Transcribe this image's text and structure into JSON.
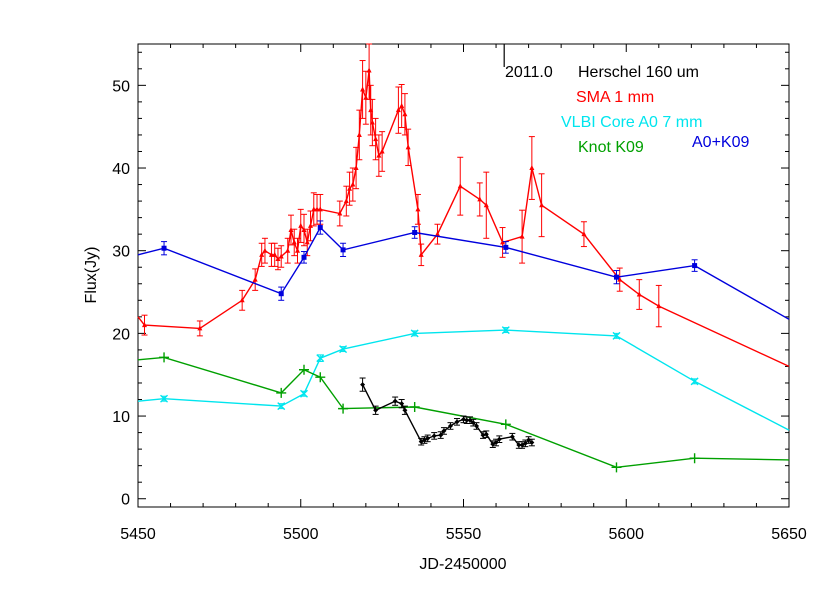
{
  "chart_data": {
    "type": "line",
    "xlabel": "JD-2450000",
    "ylabel": "Flux(Jy)",
    "xlim": [
      5450,
      5650
    ],
    "ylim": [
      -1,
      55
    ],
    "x_ticks": [
      5450,
      5500,
      5550,
      5600,
      5650
    ],
    "y_ticks": [
      0,
      10,
      20,
      30,
      40,
      50
    ],
    "annotation": {
      "label": "2011.0",
      "x": 5562.5
    },
    "series": [
      {
        "name": "SMA 1 mm",
        "color": "#ff0000",
        "marker": "triangle",
        "x": [
          5448,
          5452,
          5469,
          5482,
          5486,
          5488,
          5489,
          5491,
          5492,
          5493,
          5494,
          5496,
          5497,
          5498,
          5499,
          5500,
          5501,
          5502,
          5503,
          5504,
          5505,
          5506,
          5512,
          5514,
          5515,
          5516,
          5517,
          5518,
          5519,
          5520,
          5521,
          5521.5,
          5522,
          5523,
          5524,
          5525,
          5530,
          5531,
          5532,
          5533,
          5536,
          5537,
          5542,
          5549,
          5555,
          5557,
          5562,
          5568,
          5571,
          5574,
          5587,
          5598,
          5604,
          5610,
          5650
        ],
        "y": [
          22,
          21,
          20.6,
          24,
          26.5,
          29.5,
          30,
          29.5,
          29.5,
          29,
          29.3,
          30,
          32.5,
          31,
          30,
          33,
          32.5,
          31,
          33,
          35,
          35,
          35,
          34.5,
          36,
          37.5,
          38,
          40,
          44,
          49.5,
          48.5,
          51.8,
          47,
          45.5,
          43.5,
          41.5,
          42,
          47,
          47.5,
          46.5,
          42.5,
          35,
          29.5,
          32,
          37.8,
          36.2,
          35.5,
          31,
          31.7,
          40,
          35.5,
          32,
          26.5,
          24.7,
          23.3,
          16
        ],
        "err": [
          0.8,
          1.2,
          0.9,
          1.2,
          1.3,
          1.4,
          1.5,
          1.4,
          1.4,
          1.3,
          1.3,
          1.5,
          1.8,
          1.6,
          1.5,
          2.0,
          1.9,
          1.6,
          1.8,
          2.0,
          1.8,
          1.8,
          1.5,
          1.8,
          2.0,
          2.0,
          2.5,
          3.0,
          3.5,
          3.2,
          3.5,
          3.0,
          2.8,
          2.5,
          2.5,
          2.4,
          2.8,
          2.6,
          2.5,
          2.2,
          1.8,
          1.3,
          1.2,
          3.5,
          2.0,
          4.0,
          1.8,
          3.2,
          3.8,
          3.8,
          1.5,
          1.4,
          1.8,
          2.5,
          0
        ],
        "endpoint_arrows": [
          0,
          54
        ]
      },
      {
        "name": "A0+K09",
        "color": "#0000dd",
        "marker": "square",
        "x": [
          5447,
          5458,
          5494,
          5501,
          5506,
          5513,
          5535,
          5563,
          5597,
          5621,
          5650
        ],
        "y": [
          29.5,
          30.3,
          24.8,
          29.2,
          32.8,
          30.1,
          32.2,
          30.4,
          26.8,
          28.2,
          21.7
        ],
        "err": [
          0,
          0.8,
          0.8,
          0.7,
          0.8,
          0.8,
          0.7,
          0.7,
          0.8,
          0.7,
          0
        ],
        "endpoint_arrows": [
          0,
          10
        ]
      },
      {
        "name": "VLBI Core A0 7 mm",
        "color": "#00e5ee",
        "marker": "x",
        "x": [
          5448,
          5458,
          5494,
          5501,
          5506,
          5513,
          5535,
          5563,
          5597,
          5621,
          5650
        ],
        "y": [
          11.8,
          12.1,
          11.2,
          12.7,
          17,
          18.1,
          20,
          20.4,
          19.7,
          14.2,
          8.3
        ],
        "err": [
          0,
          0.3,
          0.3,
          0.3,
          0.4,
          0.3,
          0.3,
          0.3,
          0.3,
          0.3,
          0
        ],
        "endpoint_arrows": [
          0,
          10
        ]
      },
      {
        "name": "Knot K09",
        "color": "#00a000",
        "marker": "plus",
        "x": [
          5448,
          5458,
          5494,
          5501,
          5506,
          5513,
          5535,
          5563,
          5597,
          5621,
          5650
        ],
        "y": [
          16.8,
          17.1,
          12.8,
          15.6,
          14.7,
          10.9,
          11.1,
          9,
          3.8,
          4.9,
          4.7
        ],
        "err": [
          0,
          0,
          0,
          0,
          0,
          0,
          0,
          0,
          0,
          0,
          0
        ],
        "endpoint_arrows": [
          0,
          10
        ]
      },
      {
        "name": "Herschel 160 um",
        "color": "#000000",
        "marker": "diamond",
        "x": [
          5519,
          5523,
          5529,
          5531,
          5532,
          5537,
          5538,
          5539,
          5541,
          5543,
          5544,
          5546,
          5548,
          5550,
          5551,
          5552,
          5553,
          5554,
          5556,
          5557,
          5559,
          5560,
          5561,
          5565,
          5567,
          5568,
          5569,
          5570,
          5571
        ],
        "y": [
          13.8,
          10.7,
          11.8,
          11.5,
          10.7,
          6.9,
          7.1,
          7.3,
          7.6,
          7.7,
          8.2,
          8.8,
          9.3,
          9.6,
          9.5,
          9.5,
          9.2,
          8.8,
          7.7,
          7.8,
          6.6,
          6.8,
          7.2,
          7.5,
          6.5,
          6.5,
          6.7,
          7.1,
          6.8
        ],
        "err": [
          0.8,
          0.5,
          0.5,
          0.5,
          0.5,
          0.4,
          0.4,
          0.4,
          0.4,
          0.4,
          0.4,
          0.4,
          0.4,
          0.4,
          0.4,
          0.4,
          0.4,
          0.4,
          0.4,
          0.4,
          0.4,
          0.4,
          0.4,
          0.4,
          0.4,
          0.4,
          0.4,
          0.4,
          0.4
        ],
        "endpoint_arrows": []
      }
    ],
    "legend": [
      {
        "label": "Herschel 160 um",
        "color": "#000000"
      },
      {
        "label": "SMA 1 mm",
        "color": "#ff0000"
      },
      {
        "label": "VLBI Core A0 7 mm",
        "color": "#00e5ee"
      },
      {
        "label": "Knot K09",
        "color": "#00a000"
      },
      {
        "label": "A0+K09",
        "color": "#0000dd"
      }
    ]
  }
}
